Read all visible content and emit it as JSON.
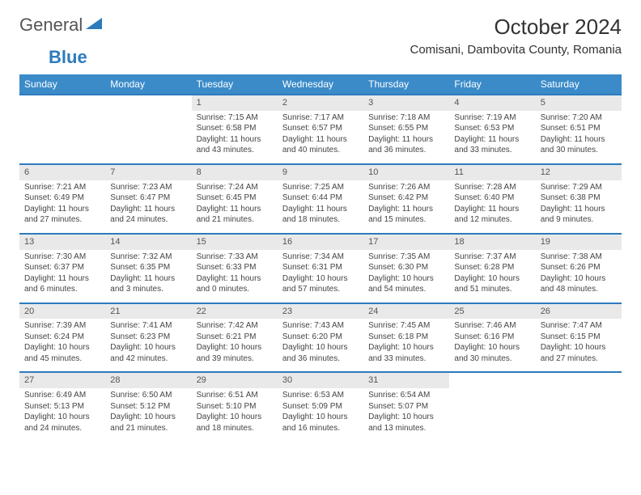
{
  "logo": {
    "text1": "General",
    "text2": "Blue"
  },
  "title": "October 2024",
  "location": "Comisani, Dambovita County, Romania",
  "colors": {
    "header_bg": "#3b8bc9",
    "border": "#2d7bbd",
    "daynum_bg": "#e9e9e9",
    "logo_blue": "#2d7bbd"
  },
  "day_labels": [
    "Sunday",
    "Monday",
    "Tuesday",
    "Wednesday",
    "Thursday",
    "Friday",
    "Saturday"
  ],
  "weeks": [
    {
      "nums": [
        "",
        "",
        "1",
        "2",
        "3",
        "4",
        "5"
      ],
      "cells": [
        [],
        [],
        [
          "Sunrise: 7:15 AM",
          "Sunset: 6:58 PM",
          "Daylight: 11 hours",
          "and 43 minutes."
        ],
        [
          "Sunrise: 7:17 AM",
          "Sunset: 6:57 PM",
          "Daylight: 11 hours",
          "and 40 minutes."
        ],
        [
          "Sunrise: 7:18 AM",
          "Sunset: 6:55 PM",
          "Daylight: 11 hours",
          "and 36 minutes."
        ],
        [
          "Sunrise: 7:19 AM",
          "Sunset: 6:53 PM",
          "Daylight: 11 hours",
          "and 33 minutes."
        ],
        [
          "Sunrise: 7:20 AM",
          "Sunset: 6:51 PM",
          "Daylight: 11 hours",
          "and 30 minutes."
        ]
      ]
    },
    {
      "nums": [
        "6",
        "7",
        "8",
        "9",
        "10",
        "11",
        "12"
      ],
      "cells": [
        [
          "Sunrise: 7:21 AM",
          "Sunset: 6:49 PM",
          "Daylight: 11 hours",
          "and 27 minutes."
        ],
        [
          "Sunrise: 7:23 AM",
          "Sunset: 6:47 PM",
          "Daylight: 11 hours",
          "and 24 minutes."
        ],
        [
          "Sunrise: 7:24 AM",
          "Sunset: 6:45 PM",
          "Daylight: 11 hours",
          "and 21 minutes."
        ],
        [
          "Sunrise: 7:25 AM",
          "Sunset: 6:44 PM",
          "Daylight: 11 hours",
          "and 18 minutes."
        ],
        [
          "Sunrise: 7:26 AM",
          "Sunset: 6:42 PM",
          "Daylight: 11 hours",
          "and 15 minutes."
        ],
        [
          "Sunrise: 7:28 AM",
          "Sunset: 6:40 PM",
          "Daylight: 11 hours",
          "and 12 minutes."
        ],
        [
          "Sunrise: 7:29 AM",
          "Sunset: 6:38 PM",
          "Daylight: 11 hours",
          "and 9 minutes."
        ]
      ]
    },
    {
      "nums": [
        "13",
        "14",
        "15",
        "16",
        "17",
        "18",
        "19"
      ],
      "cells": [
        [
          "Sunrise: 7:30 AM",
          "Sunset: 6:37 PM",
          "Daylight: 11 hours",
          "and 6 minutes."
        ],
        [
          "Sunrise: 7:32 AM",
          "Sunset: 6:35 PM",
          "Daylight: 11 hours",
          "and 3 minutes."
        ],
        [
          "Sunrise: 7:33 AM",
          "Sunset: 6:33 PM",
          "Daylight: 11 hours",
          "and 0 minutes."
        ],
        [
          "Sunrise: 7:34 AM",
          "Sunset: 6:31 PM",
          "Daylight: 10 hours",
          "and 57 minutes."
        ],
        [
          "Sunrise: 7:35 AM",
          "Sunset: 6:30 PM",
          "Daylight: 10 hours",
          "and 54 minutes."
        ],
        [
          "Sunrise: 7:37 AM",
          "Sunset: 6:28 PM",
          "Daylight: 10 hours",
          "and 51 minutes."
        ],
        [
          "Sunrise: 7:38 AM",
          "Sunset: 6:26 PM",
          "Daylight: 10 hours",
          "and 48 minutes."
        ]
      ]
    },
    {
      "nums": [
        "20",
        "21",
        "22",
        "23",
        "24",
        "25",
        "26"
      ],
      "cells": [
        [
          "Sunrise: 7:39 AM",
          "Sunset: 6:24 PM",
          "Daylight: 10 hours",
          "and 45 minutes."
        ],
        [
          "Sunrise: 7:41 AM",
          "Sunset: 6:23 PM",
          "Daylight: 10 hours",
          "and 42 minutes."
        ],
        [
          "Sunrise: 7:42 AM",
          "Sunset: 6:21 PM",
          "Daylight: 10 hours",
          "and 39 minutes."
        ],
        [
          "Sunrise: 7:43 AM",
          "Sunset: 6:20 PM",
          "Daylight: 10 hours",
          "and 36 minutes."
        ],
        [
          "Sunrise: 7:45 AM",
          "Sunset: 6:18 PM",
          "Daylight: 10 hours",
          "and 33 minutes."
        ],
        [
          "Sunrise: 7:46 AM",
          "Sunset: 6:16 PM",
          "Daylight: 10 hours",
          "and 30 minutes."
        ],
        [
          "Sunrise: 7:47 AM",
          "Sunset: 6:15 PM",
          "Daylight: 10 hours",
          "and 27 minutes."
        ]
      ]
    },
    {
      "nums": [
        "27",
        "28",
        "29",
        "30",
        "31",
        "",
        ""
      ],
      "cells": [
        [
          "Sunrise: 6:49 AM",
          "Sunset: 5:13 PM",
          "Daylight: 10 hours",
          "and 24 minutes."
        ],
        [
          "Sunrise: 6:50 AM",
          "Sunset: 5:12 PM",
          "Daylight: 10 hours",
          "and 21 minutes."
        ],
        [
          "Sunrise: 6:51 AM",
          "Sunset: 5:10 PM",
          "Daylight: 10 hours",
          "and 18 minutes."
        ],
        [
          "Sunrise: 6:53 AM",
          "Sunset: 5:09 PM",
          "Daylight: 10 hours",
          "and 16 minutes."
        ],
        [
          "Sunrise: 6:54 AM",
          "Sunset: 5:07 PM",
          "Daylight: 10 hours",
          "and 13 minutes."
        ],
        [],
        []
      ]
    }
  ]
}
